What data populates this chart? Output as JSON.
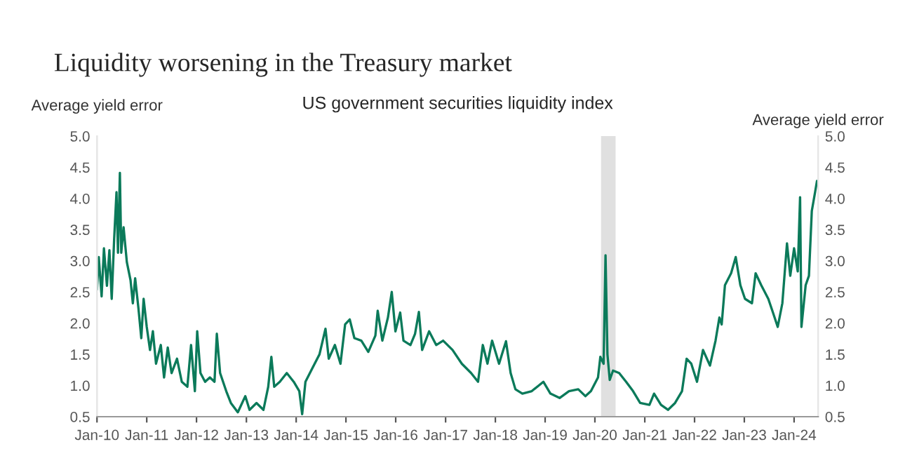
{
  "chart_data": {
    "type": "line",
    "title": "Liquidity worsening in the Treasury market",
    "subtitle": "US government securities liquidity index",
    "ylabel": "Average yield error",
    "y2label": "Average yield error",
    "x": [
      "2010-01-01",
      "2010-01-14",
      "2010-02-04",
      "2010-02-21",
      "2010-03-15",
      "2010-04-02",
      "2010-04-19",
      "2010-05-07",
      "2010-05-24",
      "2010-06-04",
      "2010-06-18",
      "2010-06-28",
      "2010-07-15",
      "2010-08-08",
      "2010-09-04",
      "2010-09-21",
      "2010-10-08",
      "2010-11-01",
      "2010-11-22",
      "2010-12-09",
      "2011-01-01",
      "2011-01-25",
      "2011-02-15",
      "2011-03-10",
      "2011-04-14",
      "2011-05-08",
      "2011-06-04",
      "2011-07-02",
      "2011-08-11",
      "2011-09-15",
      "2011-10-26",
      "2011-11-22",
      "2011-12-20",
      "2012-01-06",
      "2012-01-30",
      "2012-03-04",
      "2012-04-08",
      "2012-05-12",
      "2012-05-29",
      "2012-06-22",
      "2012-08-06",
      "2012-09-09",
      "2012-10-30",
      "2012-12-24",
      "2013-01-24",
      "2013-03-16",
      "2013-05-06",
      "2013-06-10",
      "2013-07-03",
      "2013-07-24",
      "2013-09-03",
      "2013-10-24",
      "2013-12-14",
      "2014-01-24",
      "2014-02-14",
      "2014-03-10",
      "2014-04-30",
      "2014-06-21",
      "2014-08-04",
      "2014-08-28",
      "2014-10-12",
      "2014-11-22",
      "2014-12-26",
      "2015-01-29",
      "2015-03-04",
      "2015-04-24",
      "2015-06-14",
      "2015-08-05",
      "2015-08-22",
      "2015-09-25",
      "2015-11-05",
      "2015-12-03",
      "2015-12-30",
      "2016-02-03",
      "2016-02-27",
      "2016-04-18",
      "2016-05-22",
      "2016-06-19",
      "2016-07-13",
      "2016-09-02",
      "2016-10-24",
      "2016-12-14",
      "2017-02-21",
      "2017-04-30",
      "2017-07-07",
      "2017-08-27",
      "2017-10-01",
      "2017-11-04",
      "2017-12-08",
      "2018-01-28",
      "2018-03-20",
      "2018-04-23",
      "2018-05-28",
      "2018-07-18",
      "2018-09-25",
      "2018-12-19",
      "2019-02-09",
      "2019-04-17",
      "2019-06-25",
      "2019-09-01",
      "2019-10-23",
      "2019-12-03",
      "2020-01-24",
      "2020-02-10",
      "2020-03-05",
      "2020-03-19",
      "2020-04-02",
      "2020-04-19",
      "2020-05-13",
      "2020-06-27",
      "2020-08-17",
      "2020-10-07",
      "2020-11-28",
      "2021-02-04",
      "2021-03-10",
      "2021-04-30",
      "2021-06-20",
      "2021-08-11",
      "2021-10-01",
      "2021-11-04",
      "2021-12-08",
      "2022-01-19",
      "2022-03-04",
      "2022-04-24",
      "2022-06-04",
      "2022-07-02",
      "2022-07-19",
      "2022-08-12",
      "2022-09-26",
      "2022-10-30",
      "2022-12-03",
      "2023-01-06",
      "2023-02-26",
      "2023-03-25",
      "2023-05-05",
      "2023-06-26",
      "2023-07-30",
      "2023-09-03",
      "2023-10-07",
      "2023-11-10",
      "2023-12-04",
      "2024-01-01",
      "2024-01-28",
      "2024-02-14",
      "2024-02-24",
      "2024-03-26",
      "2024-04-19",
      "2024-05-10",
      "2024-06-03",
      "2024-06-17"
    ],
    "series": [
      {
        "color": "#0b7a5a",
        "values": [
          2.54,
          3.06,
          2.43,
          3.2,
          2.6,
          3.17,
          2.39,
          3.35,
          4.1,
          3.13,
          4.41,
          3.13,
          3.54,
          2.98,
          2.69,
          2.32,
          2.72,
          2.24,
          1.76,
          2.39,
          1.94,
          1.57,
          1.87,
          1.35,
          1.65,
          1.13,
          1.61,
          1.2,
          1.43,
          1.06,
          0.98,
          1.65,
          0.91,
          1.87,
          1.2,
          1.06,
          1.13,
          1.06,
          1.83,
          1.2,
          0.91,
          0.72,
          0.57,
          0.83,
          0.61,
          0.72,
          0.61,
          0.98,
          1.46,
          0.98,
          1.06,
          1.2,
          1.06,
          0.91,
          0.54,
          1.06,
          1.28,
          1.5,
          1.91,
          1.43,
          1.65,
          1.35,
          1.98,
          2.06,
          1.76,
          1.72,
          1.54,
          1.8,
          2.2,
          1.72,
          2.09,
          2.5,
          1.87,
          2.17,
          1.72,
          1.65,
          1.83,
          2.18,
          1.57,
          1.87,
          1.65,
          1.72,
          1.57,
          1.35,
          1.2,
          1.06,
          1.65,
          1.35,
          1.72,
          1.35,
          1.71,
          1.2,
          0.94,
          0.87,
          0.91,
          1.06,
          0.87,
          0.8,
          0.91,
          0.94,
          0.83,
          0.91,
          1.13,
          1.46,
          1.35,
          3.09,
          1.5,
          1.09,
          1.24,
          1.2,
          1.06,
          0.91,
          0.72,
          0.69,
          0.87,
          0.69,
          0.61,
          0.72,
          0.91,
          1.43,
          1.35,
          1.06,
          1.57,
          1.32,
          1.72,
          2.09,
          1.98,
          2.61,
          2.8,
          3.06,
          2.61,
          2.39,
          2.32,
          2.8,
          2.61,
          2.39,
          2.17,
          1.94,
          2.32,
          3.28,
          2.76,
          3.2,
          2.83,
          4.02,
          1.94,
          2.61,
          2.76,
          3.8,
          4.1,
          4.28
        ]
      }
    ],
    "bands": [
      {
        "axis": "x",
        "from": "2020-02-15",
        "to": "2020-06-01",
        "color": "#e0e0e0"
      }
    ],
    "xlim": [
      "2010-01-01",
      "2024-06-25"
    ],
    "xticks": [
      {
        "value": "2010-01-01",
        "label": "Jan-10"
      },
      {
        "value": "2011-01-01",
        "label": "Jan-11"
      },
      {
        "value": "2012-01-01",
        "label": "Jan-12"
      },
      {
        "value": "2013-01-01",
        "label": "Jan-13"
      },
      {
        "value": "2014-01-01",
        "label": "Jan-14"
      },
      {
        "value": "2015-01-01",
        "label": "Jan-15"
      },
      {
        "value": "2016-01-01",
        "label": "Jan-16"
      },
      {
        "value": "2017-01-01",
        "label": "Jan-17"
      },
      {
        "value": "2018-01-01",
        "label": "Jan-18"
      },
      {
        "value": "2019-01-01",
        "label": "Jan-19"
      },
      {
        "value": "2020-01-01",
        "label": "Jan-20"
      },
      {
        "value": "2021-01-01",
        "label": "Jan-21"
      },
      {
        "value": "2022-01-01",
        "label": "Jan-22"
      },
      {
        "value": "2023-01-01",
        "label": "Jan-23"
      },
      {
        "value": "2024-01-01",
        "label": "Jan-24"
      }
    ],
    "ylim": [
      0.5,
      5.0
    ],
    "yticks": [
      {
        "value": 0.5,
        "label": "0.5"
      },
      {
        "value": 1,
        "label": "1.0"
      },
      {
        "value": 1.5,
        "label": "1.5"
      },
      {
        "value": 2,
        "label": "2.0"
      },
      {
        "value": 2.5,
        "label": "2.5"
      },
      {
        "value": 3,
        "label": "3.0"
      },
      {
        "value": 3.5,
        "label": "3.5"
      },
      {
        "value": 4,
        "label": "4.0"
      },
      {
        "value": 4.5,
        "label": "4.5"
      },
      {
        "value": 5,
        "label": "5.0"
      }
    ],
    "y2lim": [
      0.5,
      5.0
    ],
    "y2ticks": [
      {
        "value": 0.5,
        "label": "0.5"
      },
      {
        "value": 1,
        "label": "1.0"
      },
      {
        "value": 1.5,
        "label": "1.5"
      },
      {
        "value": 2,
        "label": "2.0"
      },
      {
        "value": 2.5,
        "label": "2.5"
      },
      {
        "value": 3,
        "label": "3.0"
      },
      {
        "value": 3.5,
        "label": "3.5"
      },
      {
        "value": 4,
        "label": "4.0"
      },
      {
        "value": 4.5,
        "label": "4.5"
      },
      {
        "value": 5,
        "label": "5.0"
      }
    ],
    "grid": false,
    "legend": false
  }
}
